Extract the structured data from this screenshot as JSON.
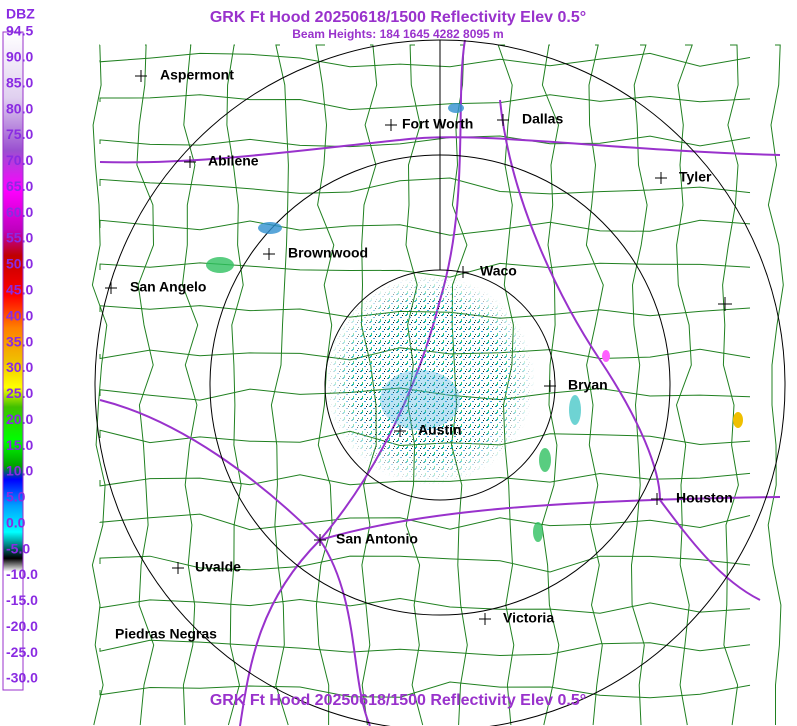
{
  "header": {
    "title": "GRK Ft Hood 20250618/1500 Reflectivity Elev 0.5°",
    "subtitle": "Beam Heights: 184 1645 4282 8095 m",
    "footer": "GRK Ft Hood 20250618/1500 Reflectivity Elev 0.5°"
  },
  "colorbar": {
    "unit": "DBZ",
    "labels": [
      "94.5",
      "90.0",
      "85.0",
      "80.0",
      "75.0",
      "70.0",
      "65.0",
      "60.0",
      "55.0",
      "50.0",
      "45.0",
      "40.0",
      "35.0",
      "30.0",
      "25.0",
      "20.0",
      "15.0",
      "10.0",
      "5.0",
      "0.0",
      "-5.0",
      "-10.0",
      "-15.0",
      "-20.0",
      "-25.0",
      "-30.0"
    ]
  },
  "cities": [
    "Aspermont",
    "Fort Worth",
    "Dallas",
    "Abilene",
    "Tyler",
    "Brownwood",
    "Waco",
    "San Angelo",
    "Bryan",
    "Austin",
    "Houston",
    "San Antonio",
    "Uvalde",
    "Piedras Negras",
    "Victoria"
  ]
}
